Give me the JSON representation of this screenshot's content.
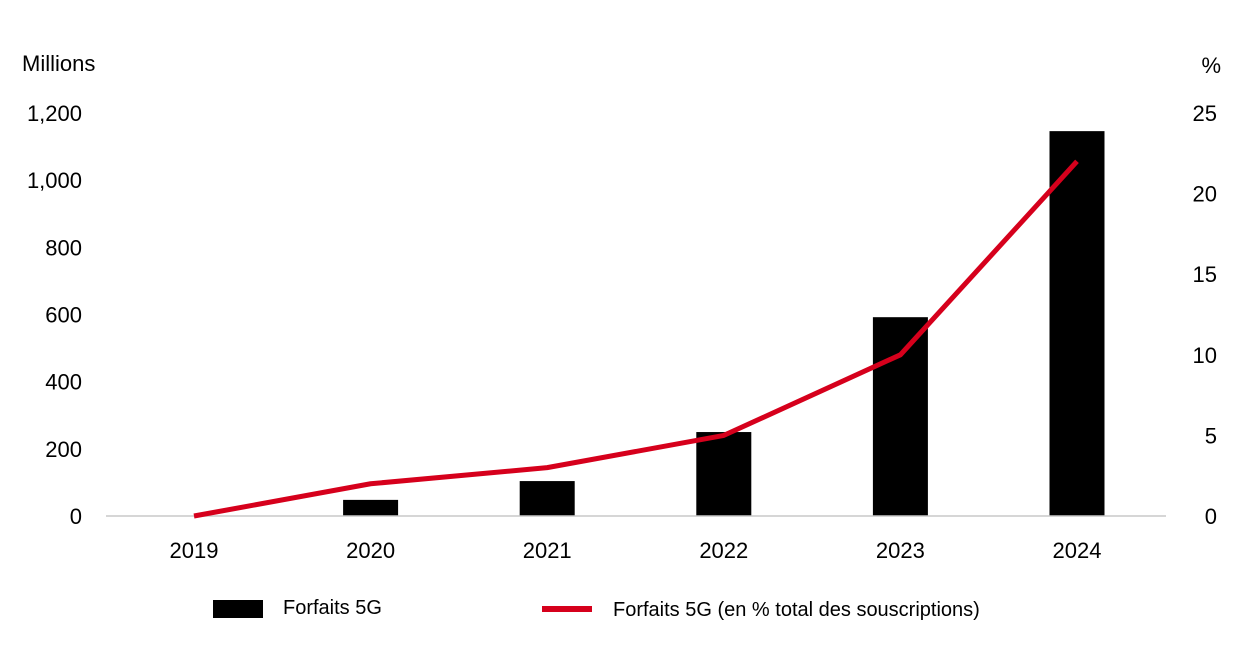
{
  "chart_data": {
    "type": "bar+line",
    "categories": [
      "2019",
      "2020",
      "2021",
      "2022",
      "2023",
      "2024"
    ],
    "series": [
      {
        "name": "Forfaits 5G",
        "type": "bar",
        "axis": "left",
        "color": "#000000",
        "values": [
          0,
          48,
          104,
          250,
          592,
          1146
        ]
      },
      {
        "name": "Forfaits 5G (en % total des souscriptions)",
        "type": "line",
        "axis": "right",
        "color": "#d6001c",
        "values": [
          0,
          2,
          3,
          5,
          10,
          22
        ]
      }
    ],
    "y_left": {
      "label": "Millions",
      "range": [
        0,
        1200
      ],
      "ticks": [
        0,
        200,
        400,
        600,
        800,
        1000,
        1200
      ],
      "tick_labels": [
        "0",
        "200",
        "400",
        "600",
        "800",
        "1,000",
        "1,200"
      ]
    },
    "y_right": {
      "label": "%",
      "range": [
        0,
        25
      ],
      "ticks": [
        0,
        5,
        10,
        15,
        20,
        25
      ],
      "tick_labels": [
        "0",
        "5",
        "10",
        "15",
        "20",
        "25"
      ]
    },
    "grid": false,
    "legend_placement": "bottom"
  }
}
